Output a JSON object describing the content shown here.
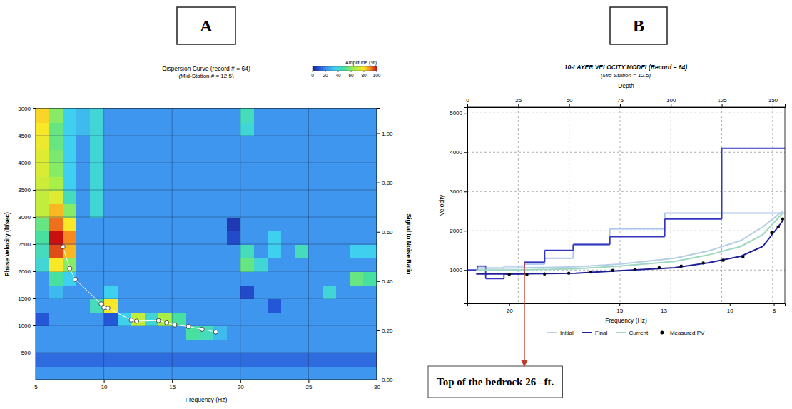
{
  "chart_data": [
    {
      "panel_label": "A",
      "type": "heatmap",
      "title": "Dispersion Curve (record # = 64)",
      "subtitle": "(Mid-Station # = 12.5)",
      "x_label": "Frequency (Hz)",
      "y_label": "Phase Velocity (ft/sec)",
      "y2_label": "Signal to Noise Ratio",
      "xlim": [
        5,
        30
      ],
      "xticks": [
        5,
        10,
        15,
        20,
        25,
        30
      ],
      "ylim": [
        0,
        5000
      ],
      "yticks": [
        500,
        1000,
        1500,
        2000,
        2500,
        3000,
        3500,
        4000,
        4500,
        5000
      ],
      "y2lim": [
        0,
        1.1
      ],
      "y2ticks": [
        {
          "value": 0,
          "label": "0.00"
        },
        {
          "value": 0.2,
          "label": "0.20"
        },
        {
          "value": 0.4,
          "label": "0.40"
        },
        {
          "value": 0.6,
          "label": "0.60"
        },
        {
          "value": 0.8,
          "label": "0.80"
        },
        {
          "value": 1,
          "label": "1.00"
        }
      ],
      "grid": true,
      "cells": {
        "x_edges": [
          5,
          6,
          7,
          8,
          9,
          10,
          11,
          12,
          13,
          14,
          15,
          16,
          17,
          18,
          19,
          20,
          21,
          22,
          23,
          24,
          25,
          26,
          27,
          28,
          29,
          30
        ],
        "y_edges": [
          0,
          250,
          500,
          750,
          1000,
          1250,
          1500,
          1750,
          2000,
          2250,
          2500,
          2750,
          3000,
          3250,
          3500,
          3750,
          4000,
          4250,
          4500,
          4750,
          5000
        ],
        "values": [
          [
            22,
            22,
            22,
            22,
            22,
            22,
            22,
            22,
            22,
            22,
            22,
            22,
            22,
            22,
            22,
            22,
            22,
            22,
            22,
            22,
            22,
            22,
            22,
            22,
            22
          ],
          [
            14,
            14,
            14,
            14,
            14,
            14,
            14,
            14,
            14,
            14,
            14,
            14,
            14,
            14,
            14,
            14,
            14,
            14,
            14,
            14,
            14,
            14,
            14,
            14,
            14
          ],
          [
            22,
            22,
            22,
            22,
            22,
            22,
            22,
            22,
            22,
            22,
            22,
            22,
            22,
            22,
            22,
            22,
            22,
            22,
            22,
            22,
            22,
            22,
            22,
            22,
            22
          ],
          [
            22,
            22,
            22,
            22,
            22,
            22,
            22,
            22,
            22,
            22,
            22,
            50,
            45,
            30,
            22,
            22,
            22,
            22,
            22,
            22,
            22,
            22,
            22,
            22,
            22
          ],
          [
            10,
            22,
            22,
            22,
            22,
            10,
            35,
            70,
            40,
            65,
            50,
            22,
            22,
            22,
            22,
            22,
            22,
            22,
            22,
            22,
            22,
            22,
            22,
            22,
            22
          ],
          [
            22,
            22,
            22,
            22,
            45,
            80,
            22,
            22,
            22,
            22,
            22,
            22,
            22,
            22,
            22,
            22,
            22,
            10,
            22,
            22,
            22,
            22,
            22,
            22,
            22
          ],
          [
            22,
            30,
            22,
            22,
            22,
            35,
            22,
            22,
            22,
            22,
            22,
            22,
            22,
            22,
            22,
            8,
            22,
            22,
            22,
            22,
            22,
            40,
            22,
            22,
            22
          ],
          [
            22,
            50,
            35,
            22,
            22,
            22,
            22,
            22,
            22,
            22,
            22,
            22,
            22,
            22,
            22,
            22,
            22,
            22,
            22,
            22,
            22,
            22,
            22,
            55,
            50
          ],
          [
            40,
            80,
            60,
            22,
            22,
            22,
            22,
            22,
            22,
            22,
            22,
            22,
            22,
            22,
            22,
            55,
            40,
            22,
            22,
            22,
            22,
            22,
            22,
            22,
            22
          ],
          [
            45,
            95,
            85,
            22,
            22,
            22,
            22,
            22,
            22,
            22,
            22,
            22,
            22,
            22,
            22,
            45,
            22,
            35,
            22,
            45,
            22,
            22,
            22,
            35,
            35
          ],
          [
            50,
            100,
            90,
            22,
            22,
            22,
            22,
            22,
            22,
            22,
            22,
            22,
            22,
            22,
            8,
            22,
            22,
            35,
            22,
            22,
            22,
            22,
            22,
            22,
            22
          ],
          [
            55,
            92,
            80,
            22,
            22,
            22,
            22,
            22,
            22,
            22,
            22,
            22,
            22,
            22,
            5,
            22,
            22,
            22,
            22,
            22,
            22,
            22,
            22,
            22,
            22
          ],
          [
            70,
            85,
            60,
            22,
            40,
            22,
            22,
            22,
            22,
            22,
            22,
            22,
            22,
            22,
            22,
            22,
            22,
            22,
            22,
            22,
            22,
            22,
            22,
            22,
            22
          ],
          [
            70,
            75,
            45,
            22,
            40,
            22,
            22,
            22,
            22,
            22,
            22,
            22,
            22,
            22,
            22,
            22,
            22,
            22,
            22,
            22,
            22,
            22,
            22,
            22,
            22
          ],
          [
            72,
            65,
            35,
            22,
            40,
            22,
            22,
            22,
            22,
            22,
            22,
            22,
            22,
            22,
            22,
            22,
            22,
            22,
            22,
            22,
            22,
            22,
            22,
            22,
            22
          ],
          [
            74,
            60,
            35,
            22,
            40,
            22,
            22,
            22,
            22,
            22,
            22,
            22,
            22,
            22,
            22,
            22,
            22,
            22,
            22,
            22,
            22,
            22,
            22,
            22,
            22
          ],
          [
            75,
            58,
            35,
            22,
            40,
            22,
            22,
            22,
            22,
            22,
            22,
            22,
            22,
            22,
            22,
            22,
            22,
            22,
            22,
            22,
            22,
            22,
            22,
            22,
            22
          ],
          [
            78,
            55,
            35,
            22,
            40,
            22,
            22,
            22,
            22,
            22,
            22,
            22,
            22,
            22,
            22,
            22,
            22,
            22,
            22,
            22,
            22,
            22,
            22,
            22,
            22
          ],
          [
            80,
            55,
            35,
            30,
            40,
            22,
            22,
            22,
            22,
            22,
            22,
            22,
            22,
            22,
            22,
            40,
            22,
            22,
            22,
            22,
            22,
            22,
            22,
            22,
            22
          ],
          [
            82,
            60,
            35,
            30,
            40,
            22,
            22,
            22,
            22,
            22,
            22,
            22,
            22,
            22,
            22,
            45,
            22,
            22,
            22,
            22,
            22,
            22,
            22,
            22,
            22
          ]
        ]
      },
      "colorbar": {
        "label": "Amplitude (%)",
        "range": [
          0,
          100
        ],
        "ticks": [
          0,
          20,
          40,
          60,
          80,
          100
        ]
      },
      "series": [
        {
          "type": "line",
          "marker": "circle",
          "color": "#ffffff",
          "x": [
            7.0,
            7.5,
            7.9,
            9.8,
            10.0,
            10.3,
            12.0,
            12.4,
            14.0,
            14.6,
            15.2,
            16.2,
            17.2,
            18.2
          ],
          "values": [
            2450,
            2050,
            1850,
            1400,
            1330,
            1320,
            1100,
            1080,
            1090,
            1050,
            1010,
            980,
            930,
            880
          ]
        }
      ]
    },
    {
      "panel_label": "B",
      "type": "line",
      "title": "10-LAYER VELOCITY MODEL(Record = 64)",
      "subtitle": "(Mid-Station = 12.5)",
      "x_label": "Depth",
      "x2_label": "Frequency (Hz)",
      "y_label": "Velocity",
      "xlim": [
        0,
        156
      ],
      "xticks": [
        0,
        25,
        50,
        75,
        100,
        125,
        150
      ],
      "x2lim": [
        21.9,
        7.5
      ],
      "x2ticks": [
        20,
        15,
        13,
        10,
        8
      ],
      "ylim": [
        150,
        5150
      ],
      "yticks": [
        1000,
        2000,
        3000,
        4000,
        5000
      ],
      "grid": true,
      "legend": "bottom",
      "series": [
        {
          "type": "step",
          "color": "#a9c4ec",
          "x": [
            0,
            5,
            9,
            18,
            28,
            38,
            52,
            70,
            97,
            125
          ],
          "values": [
            1000,
            1050,
            1050,
            1100,
            1150,
            1300,
            1650,
            2050,
            2450,
            2450
          ]
        },
        {
          "type": "step",
          "color": "#3535c0",
          "x": [
            0,
            5,
            9,
            18,
            28,
            38,
            52,
            70,
            97,
            125
          ],
          "values": [
            1000,
            1100,
            780,
            900,
            1200,
            1500,
            1650,
            1850,
            2300,
            4100
          ]
        },
        {
          "name": "Initial",
          "type": "line",
          "axis": "x2",
          "color": "#b4cfe6",
          "x": [
            21.5,
            20,
            17,
            15,
            12.5,
            11,
            9.5,
            8.5,
            7.6
          ],
          "values": [
            1050,
            1050,
            1080,
            1150,
            1300,
            1480,
            1750,
            2100,
            2500
          ]
        },
        {
          "name": "Final",
          "type": "line",
          "axis": "x2",
          "color": "#1f1f9a",
          "x": [
            21.5,
            20,
            17,
            15,
            12.5,
            11,
            9.5,
            8.5,
            7.6
          ],
          "values": [
            900,
            900,
            920,
            980,
            1060,
            1180,
            1350,
            1600,
            2250
          ]
        },
        {
          "name": "Current",
          "type": "line",
          "axis": "x2",
          "color": "#9fd8c0",
          "x": [
            21.5,
            20,
            17,
            15,
            12.5,
            11,
            9.5,
            8.5,
            7.6
          ],
          "values": [
            1000,
            1000,
            1030,
            1100,
            1220,
            1380,
            1600,
            1900,
            2450
          ]
        },
        {
          "name": "Measured PV",
          "type": "scatter",
          "axis": "x2",
          "marker": "circle",
          "color": "#000000",
          "x": [
            20,
            19.2,
            18.4,
            17.3,
            16.3,
            15.3,
            14.3,
            13.2,
            12.2,
            11.2,
            10.3,
            9.4,
            8.1,
            7.8,
            7.6
          ],
          "values": [
            890,
            880,
            900,
            920,
            950,
            990,
            1020,
            1060,
            1100,
            1180,
            1250,
            1330,
            1950,
            2100,
            2300
          ]
        }
      ],
      "annotations": [
        {
          "text": "Top of the bedrock 26 –ft.",
          "x": 28,
          "y": 1200
        }
      ]
    }
  ]
}
